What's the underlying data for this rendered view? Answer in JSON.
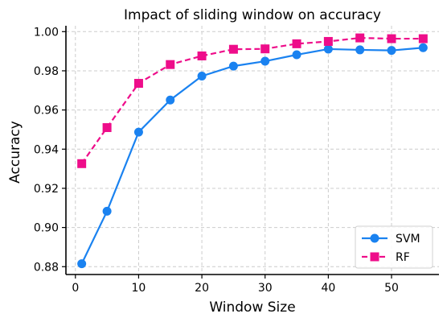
{
  "chart_data": {
    "type": "line",
    "title": "Impact of sliding window on accuracy",
    "xlabel": "Window Size",
    "ylabel": "Accuracy",
    "xlim": [
      -1.5,
      57.5
    ],
    "ylim": [
      0.876,
      1.003
    ],
    "xticks": [
      0,
      10,
      20,
      30,
      40,
      50
    ],
    "yticks": [
      0.88,
      0.9,
      0.92,
      0.94,
      0.96,
      0.98,
      1.0
    ],
    "ytick_labels": [
      "0.88",
      "0.90",
      "0.92",
      "0.94",
      "0.96",
      "0.98",
      "1.00"
    ],
    "grid": true,
    "legend_position": "bottom-right",
    "x": [
      1,
      5,
      10,
      15,
      20,
      25,
      30,
      35,
      40,
      45,
      50,
      55
    ],
    "series": [
      {
        "name": "SVM",
        "color": "#1a82f0",
        "line_style": "solid",
        "marker": "circle",
        "values": [
          0.8815,
          0.9083,
          0.9487,
          0.9651,
          0.9773,
          0.9824,
          0.9849,
          0.9882,
          0.9911,
          0.9907,
          0.9904,
          0.9918
        ]
      },
      {
        "name": "RF",
        "color": "#ee0d8a",
        "line_style": "dashed",
        "marker": "square",
        "values": [
          0.9326,
          0.951,
          0.9736,
          0.9832,
          0.9876,
          0.991,
          0.9912,
          0.9938,
          0.995,
          0.9968,
          0.9964,
          0.9964
        ]
      }
    ]
  }
}
